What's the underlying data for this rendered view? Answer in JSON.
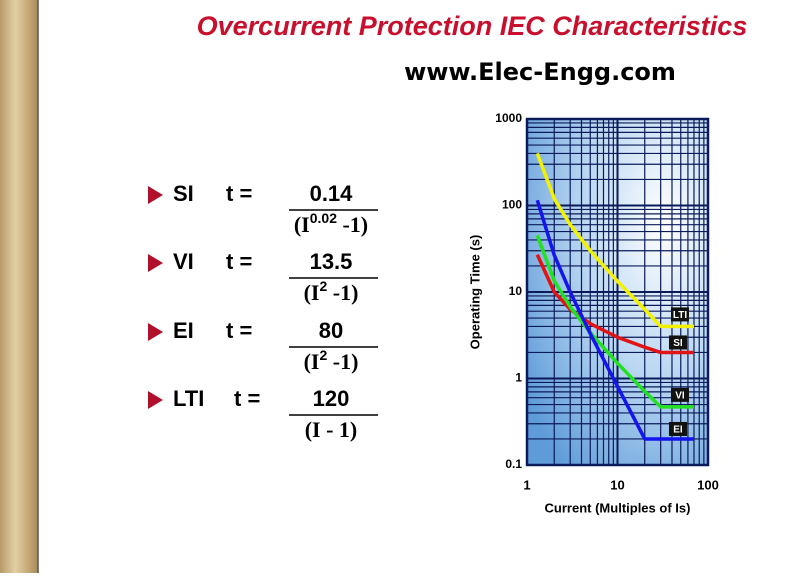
{
  "slide": {
    "title": "Overcurrent Protection IEC Characteristics",
    "website": "www.Elec-Engg.com",
    "formulas": [
      {
        "name": "SI",
        "equals": "t =",
        "numerator": 0.14,
        "denominator_start": "(I",
        "exponent": "0.02",
        "denominator_end": " -1)"
      },
      {
        "name": "VI",
        "equals": "t =",
        "numerator": 13.5,
        "denominator_start": "(I",
        "exponent": "2",
        "denominator_end": " -1)"
      },
      {
        "name": "EI",
        "equals": "t =",
        "numerator": 80,
        "denominator_start": "(I",
        "exponent": "2",
        "denominator_end": " -1)"
      },
      {
        "name": "LTI",
        "equals": "t =",
        "numerator": 120,
        "denominator_start": "(I - 1)",
        "exponent": null,
        "denominator_end": null
      }
    ]
  },
  "chart_data": {
    "type": "line",
    "x_label": "Current (Multiples of Is)",
    "y_label": "Operating Time (s)",
    "xscale": "log",
    "yscale": "log",
    "grid": true,
    "xlim": [
      1,
      100
    ],
    "ylim": [
      0.1,
      1000
    ],
    "xticks": [
      1,
      10,
      100
    ],
    "yticks": [
      0.1,
      1,
      10,
      100,
      1000
    ],
    "x_minor_grid": [
      2,
      3,
      4,
      5,
      6,
      7,
      8,
      9,
      20,
      30,
      40,
      50,
      60,
      70,
      80,
      90
    ],
    "y_minor_grid": [
      0.2,
      0.3,
      0.4,
      0.5,
      0.6,
      0.7,
      0.8,
      0.9,
      2,
      3,
      4,
      5,
      6,
      7,
      8,
      9,
      20,
      30,
      40,
      50,
      60,
      70,
      80,
      90,
      200,
      300,
      400,
      500,
      600,
      700,
      800,
      900
    ],
    "x": [
      1.3,
      2,
      3,
      5,
      10,
      20,
      30,
      70
    ],
    "series": [
      {
        "name": "LTI",
        "color": "#f2f200",
        "values": [
          400,
          120,
          60,
          30,
          13.3,
          6.3,
          4,
          4
        ]
      },
      {
        "name": "SI",
        "color": "#e01414",
        "values": [
          27,
          10,
          6.3,
          4.3,
          3,
          2.3,
          2,
          2
        ]
      },
      {
        "name": "VI",
        "color": "#22e022",
        "values": [
          45,
          13.5,
          6.75,
          3.4,
          1.5,
          0.71,
          0.47,
          0.47
        ]
      },
      {
        "name": "EI",
        "color": "#1414ee",
        "values": [
          115,
          26.7,
          10,
          3.3,
          0.81,
          0.2,
          0.2,
          0.2
        ]
      }
    ]
  }
}
